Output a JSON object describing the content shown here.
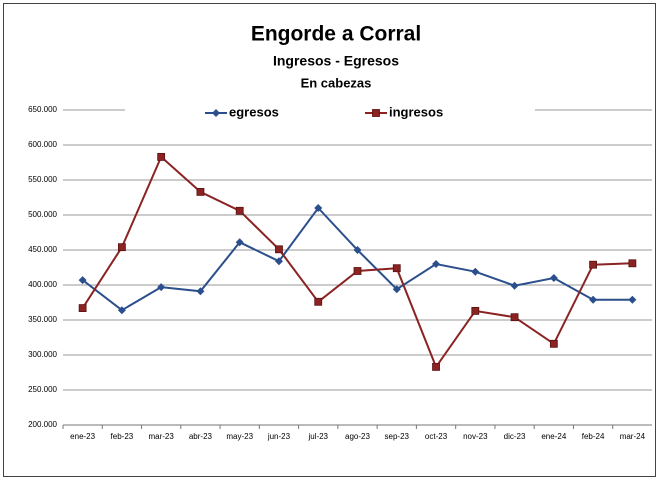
{
  "chart_data": {
    "type": "line",
    "title": "Engorde a Corral",
    "subtitle": "Ingresos - Egresos",
    "annotation": "En cabezas",
    "categories": [
      "ene-23",
      "feb-23",
      "mar-23",
      "abr-23",
      "may-23",
      "jun-23",
      "jul-23",
      "ago-23",
      "sep-23",
      "oct-23",
      "nov-23",
      "dic-23",
      "ene-24",
      "feb-24",
      "mar-24"
    ],
    "series": [
      {
        "name": "egresos",
        "color": "#2b4f8c",
        "marker": "diamond",
        "values": [
          407000,
          364000,
          397000,
          391000,
          461000,
          434000,
          510000,
          450000,
          394000,
          430000,
          419000,
          399000,
          410000,
          379000,
          379000
        ]
      },
      {
        "name": "ingresos",
        "color": "#8b2323",
        "marker": "square",
        "values": [
          367000,
          454000,
          583000,
          533000,
          506000,
          451000,
          376000,
          420000,
          424000,
          283000,
          363000,
          354000,
          316000,
          429000,
          431000
        ]
      }
    ],
    "ylim": [
      200000,
      650000
    ],
    "yticks": [
      {
        "value": 200000,
        "label": "200.000"
      },
      {
        "value": 250000,
        "label": "250.000"
      },
      {
        "value": 300000,
        "label": "300.000"
      },
      {
        "value": 350000,
        "label": "350.000"
      },
      {
        "value": 400000,
        "label": "400.000"
      },
      {
        "value": 450000,
        "label": "450.000"
      },
      {
        "value": 500000,
        "label": "500.000"
      },
      {
        "value": 550000,
        "label": "550.000"
      },
      {
        "value": 600000,
        "label": "600.000"
      },
      {
        "value": 650000,
        "label": "650.000"
      }
    ],
    "grid": true,
    "legend": "top"
  }
}
